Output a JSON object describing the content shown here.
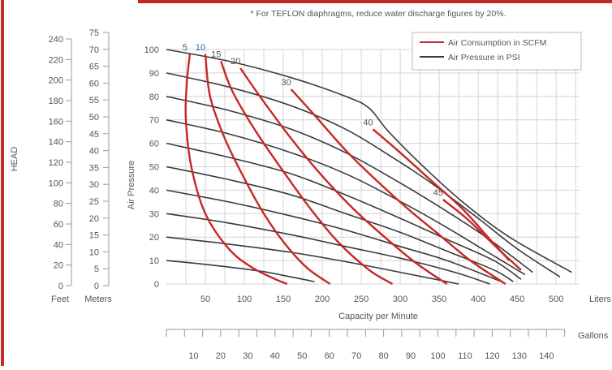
{
  "chart_data": {
    "type": "line",
    "note": "* For TEFLON diaphragms, reduce water discharge figures by 20%.",
    "legend": {
      "placement": "top-right",
      "items": [
        {
          "label": "Air Consumption in SCFM",
          "color": "#c62828"
        },
        {
          "label": "Air Pressure in PSI",
          "color": "#3a3a3a"
        }
      ]
    },
    "colors": {
      "scfm": "#c62828",
      "psi": "#3a3a3a",
      "frame": "#c62828",
      "grid": "#d4d4d4",
      "text": "#555555"
    },
    "x_axis": {
      "label": "Capacity per Minute",
      "unit": "Liters",
      "range": [
        0,
        530
      ],
      "ticks": [
        50,
        100,
        150,
        200,
        250,
        300,
        350,
        400,
        450,
        500
      ]
    },
    "y_axis": {
      "label": "Air Pressure",
      "range": [
        0,
        100
      ],
      "ticks": [
        0,
        10,
        20,
        30,
        40,
        50,
        60,
        70,
        80,
        90,
        100
      ]
    },
    "head_axis": {
      "title": "HEAD",
      "feet_label": "Feet",
      "feet_ticks": [
        0,
        20,
        40,
        60,
        80,
        100,
        120,
        140,
        160,
        180,
        200,
        220,
        240
      ],
      "meters_label": "Meters",
      "meters_ticks": [
        0,
        5,
        10,
        15,
        20,
        25,
        30,
        35,
        40,
        45,
        50,
        55,
        60,
        65,
        70,
        75
      ]
    },
    "gallons_axis": {
      "unit": "Gallons",
      "ticks": [
        10,
        20,
        30,
        40,
        50,
        60,
        70,
        80,
        90,
        100,
        110,
        120,
        130,
        140
      ]
    },
    "psi_series": [
      {
        "name": "100",
        "points": [
          [
            0,
            100
          ],
          [
            80,
            95
          ],
          [
            160,
            88
          ],
          [
            230,
            80
          ],
          [
            260,
            75
          ],
          [
            285,
            65
          ],
          [
            330,
            50
          ],
          [
            380,
            35
          ],
          [
            440,
            20
          ],
          [
            520,
            5
          ]
        ]
      },
      {
        "name": "90",
        "points": [
          [
            0,
            90
          ],
          [
            80,
            84
          ],
          [
            160,
            76
          ],
          [
            230,
            66
          ],
          [
            290,
            54
          ],
          [
            340,
            43
          ],
          [
            400,
            28
          ],
          [
            450,
            15
          ],
          [
            505,
            3
          ]
        ]
      },
      {
        "name": "80",
        "points": [
          [
            0,
            80
          ],
          [
            80,
            74
          ],
          [
            160,
            66
          ],
          [
            230,
            56
          ],
          [
            290,
            45
          ],
          [
            350,
            33
          ],
          [
            410,
            20
          ],
          [
            470,
            5
          ]
        ]
      },
      {
        "name": "70",
        "points": [
          [
            0,
            70
          ],
          [
            80,
            64
          ],
          [
            160,
            56
          ],
          [
            230,
            47
          ],
          [
            290,
            37
          ],
          [
            350,
            26
          ],
          [
            410,
            14
          ],
          [
            460,
            4
          ]
        ]
      },
      {
        "name": "60",
        "points": [
          [
            0,
            60
          ],
          [
            80,
            54
          ],
          [
            160,
            47
          ],
          [
            230,
            38
          ],
          [
            300,
            28
          ],
          [
            360,
            19
          ],
          [
            420,
            10
          ],
          [
            455,
            2
          ]
        ]
      },
      {
        "name": "50",
        "points": [
          [
            0,
            50
          ],
          [
            80,
            44.5
          ],
          [
            160,
            38
          ],
          [
            230,
            30
          ],
          [
            300,
            22
          ],
          [
            360,
            14
          ],
          [
            420,
            6
          ],
          [
            445,
            1
          ]
        ]
      },
      {
        "name": "40",
        "points": [
          [
            0,
            40
          ],
          [
            80,
            35
          ],
          [
            160,
            29
          ],
          [
            230,
            23
          ],
          [
            300,
            16
          ],
          [
            360,
            10
          ],
          [
            430,
            1
          ]
        ]
      },
      {
        "name": "30",
        "points": [
          [
            0,
            30
          ],
          [
            80,
            26
          ],
          [
            160,
            21
          ],
          [
            230,
            16
          ],
          [
            300,
            11
          ],
          [
            370,
            5
          ],
          [
            415,
            0
          ]
        ]
      },
      {
        "name": "20",
        "points": [
          [
            0,
            20
          ],
          [
            80,
            17
          ],
          [
            160,
            13.5
          ],
          [
            230,
            9.5
          ],
          [
            300,
            5
          ],
          [
            345,
            2
          ],
          [
            375,
            0
          ]
        ]
      },
      {
        "name": "10",
        "points": [
          [
            0,
            10
          ],
          [
            60,
            8
          ],
          [
            120,
            5.5
          ],
          [
            160,
            3
          ],
          [
            190,
            1
          ]
        ]
      }
    ],
    "scfm_series": [
      {
        "name": "5",
        "points": [
          [
            30,
            98
          ],
          [
            26,
            85
          ],
          [
            25,
            70
          ],
          [
            32,
            50
          ],
          [
            50,
            30
          ],
          [
            80,
            15
          ],
          [
            110,
            7
          ],
          [
            140,
            2
          ],
          [
            155,
            0
          ]
        ]
      },
      {
        "name": "10",
        "points": [
          [
            50,
            98
          ],
          [
            56,
            80
          ],
          [
            75,
            62
          ],
          [
            100,
            45
          ],
          [
            125,
            30
          ],
          [
            150,
            18
          ],
          [
            180,
            7
          ],
          [
            210,
            0
          ]
        ]
      },
      {
        "name": "15",
        "points": [
          [
            70,
            95
          ],
          [
            85,
            82
          ],
          [
            115,
            65
          ],
          [
            150,
            48
          ],
          [
            185,
            32
          ],
          [
            220,
            18
          ],
          [
            260,
            6
          ],
          [
            290,
            0
          ]
        ]
      },
      {
        "name": "20",
        "points": [
          [
            95,
            92
          ],
          [
            120,
            80
          ],
          [
            160,
            62
          ],
          [
            200,
            46
          ],
          [
            240,
            32
          ],
          [
            280,
            20
          ],
          [
            320,
            9
          ],
          [
            360,
            0
          ]
        ]
      },
      {
        "name": "30",
        "points": [
          [
            160,
            83
          ],
          [
            190,
            72
          ],
          [
            230,
            57
          ],
          [
            270,
            44
          ],
          [
            310,
            32
          ],
          [
            350,
            21
          ],
          [
            390,
            10
          ],
          [
            435,
            0
          ]
        ]
      },
      {
        "name": "40",
        "points": [
          [
            265,
            66
          ],
          [
            300,
            56
          ],
          [
            340,
            44
          ],
          [
            380,
            32
          ],
          [
            415,
            19
          ],
          [
            440,
            10
          ]
        ]
      },
      {
        "name": "45",
        "points": [
          [
            355,
            36
          ],
          [
            385,
            28
          ],
          [
            410,
            20
          ],
          [
            435,
            12
          ],
          [
            455,
            6
          ]
        ]
      }
    ],
    "psi_label": "Air Pressure in PSI",
    "scfm_label": "Air Consumption in SCFM"
  }
}
